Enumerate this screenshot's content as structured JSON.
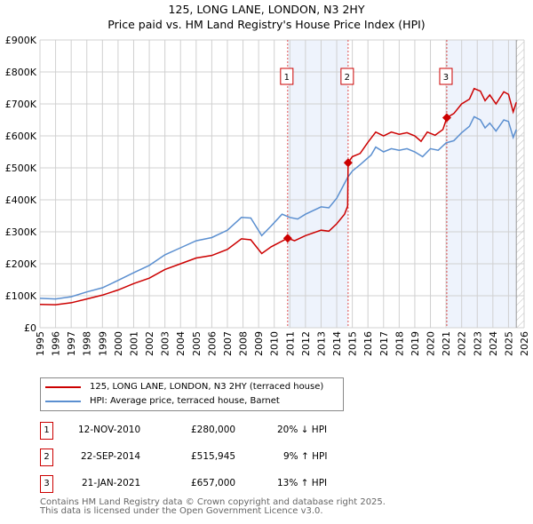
{
  "chart_data": {
    "type": "line",
    "title": "125, LONG LANE, LONDON, N3 2HY",
    "subtitle": "Price paid vs. HM Land Registry's House Price Index (HPI)",
    "xlim": [
      1995,
      2026
    ],
    "ylim": [
      0,
      900000
    ],
    "x_ticks": [
      "1995",
      "1996",
      "1997",
      "1998",
      "1999",
      "2000",
      "2001",
      "2002",
      "2003",
      "2004",
      "2005",
      "2006",
      "2007",
      "2008",
      "2009",
      "2010",
      "2011",
      "2012",
      "2013",
      "2014",
      "2015",
      "2016",
      "2017",
      "2018",
      "2019",
      "2020",
      "2021",
      "2022",
      "2023",
      "2024",
      "2025",
      "2026"
    ],
    "y_ticks": [
      {
        "v": 0,
        "l": "£0"
      },
      {
        "v": 100000,
        "l": "£100K"
      },
      {
        "v": 200000,
        "l": "£200K"
      },
      {
        "v": 300000,
        "l": "£300K"
      },
      {
        "v": 400000,
        "l": "£400K"
      },
      {
        "v": 500000,
        "l": "£500K"
      },
      {
        "v": 600000,
        "l": "£600K"
      },
      {
        "v": 700000,
        "l": "£700K"
      },
      {
        "v": 800000,
        "l": "£800K"
      },
      {
        "v": 900000,
        "l": "£900K"
      }
    ],
    "grid": true,
    "series": [
      {
        "name": "125, LONG LANE, LONDON, N3 2HY (terraced house)",
        "color": "#cc0000",
        "x": [
          1995,
          1996,
          1997,
          1998,
          1999,
          2000,
          2001,
          2002,
          2003,
          2004,
          2005,
          2006,
          2007,
          2007.9,
          2008.5,
          2009.2,
          2009.8,
          2010.86,
          2011.3,
          2012,
          2013,
          2013.5,
          2014,
          2014.5,
          2014.7,
          2014.73,
          2015,
          2015.5,
          2016,
          2016.5,
          2017,
          2017.5,
          2018,
          2018.5,
          2019,
          2019.4,
          2019.8,
          2020.3,
          2020.8,
          2021.05,
          2021.5,
          2022,
          2022.5,
          2022.8,
          2023.2,
          2023.5,
          2023.8,
          2024.2,
          2024.7,
          2025,
          2025.3,
          2025.5
        ],
        "y": [
          73000,
          72000,
          78000,
          90000,
          102000,
          118000,
          138000,
          155000,
          182000,
          200000,
          218000,
          226000,
          245000,
          278000,
          275000,
          232000,
          253000,
          280000,
          272000,
          288000,
          305000,
          302000,
          325000,
          355000,
          380000,
          516000,
          535000,
          545000,
          580000,
          612000,
          600000,
          612000,
          605000,
          610000,
          600000,
          583000,
          612000,
          602000,
          620000,
          657000,
          670000,
          700000,
          715000,
          748000,
          740000,
          710000,
          728000,
          700000,
          738000,
          730000,
          675000,
          705000
        ]
      },
      {
        "name": "HPI: Average price, terraced house, Barnet",
        "color": "#5b8fd0",
        "x": [
          1995,
          1996,
          1997,
          1998,
          1999,
          2000,
          2001,
          2002,
          2003,
          2004,
          2005,
          2006,
          2007,
          2007.9,
          2008.5,
          2009.2,
          2009.8,
          2010.5,
          2011,
          2011.5,
          2012,
          2013,
          2013.5,
          2014,
          2014.7,
          2015,
          2015.5,
          2016.2,
          2016.5,
          2017,
          2017.5,
          2018,
          2018.5,
          2019,
          2019.5,
          2020,
          2020.5,
          2021,
          2021.5,
          2022,
          2022.5,
          2022.8,
          2023.2,
          2023.5,
          2023.8,
          2024.2,
          2024.7,
          2025,
          2025.3,
          2025.5
        ],
        "y": [
          92000,
          90000,
          97000,
          112000,
          125000,
          148000,
          172000,
          195000,
          228000,
          250000,
          272000,
          282000,
          305000,
          345000,
          343000,
          288000,
          318000,
          355000,
          345000,
          340000,
          355000,
          378000,
          375000,
          405000,
          470000,
          490000,
          510000,
          540000,
          565000,
          550000,
          560000,
          555000,
          560000,
          550000,
          535000,
          560000,
          555000,
          578000,
          585000,
          610000,
          630000,
          660000,
          650000,
          625000,
          640000,
          615000,
          650000,
          645000,
          595000,
          620000
        ]
      }
    ],
    "shaded_ranges": [
      [
        2010.86,
        2014.73
      ],
      [
        2021.05,
        2025.5
      ]
    ],
    "forecast_hatch_from": 2025.5,
    "sales": [
      {
        "label": "1",
        "x": 2010.86,
        "y": 280000,
        "date": "12-NOV-2010",
        "price": "£280,000",
        "hpi": "20% ↓ HPI"
      },
      {
        "label": "2",
        "x": 2014.73,
        "y": 515945,
        "date": "22-SEP-2014",
        "price": "£515,945",
        "hpi": "9% ↑ HPI"
      },
      {
        "label": "3",
        "x": 2021.05,
        "y": 657000,
        "date": "21-JAN-2021",
        "price": "£657,000",
        "hpi": "13% ↑ HPI"
      }
    ]
  },
  "footer": [
    "Contains HM Land Registry data © Crown copyright and database right 2025.",
    "This data is licensed under the Open Government Licence v3.0."
  ]
}
